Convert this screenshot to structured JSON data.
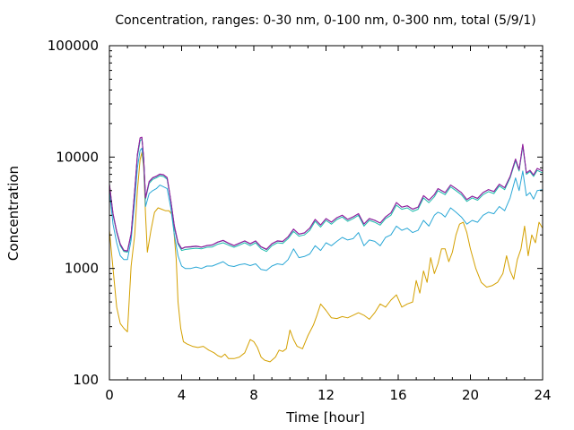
{
  "chart_data": {
    "type": "line",
    "title": "Concentration, ranges: 0-30 nm, 0-100 nm, 0-300 nm, total (5/9/1)",
    "xlabel": "Time [hour]",
    "ylabel": "Concentration",
    "xlim": [
      0,
      24
    ],
    "ylim": [
      100,
      100000
    ],
    "yscale": "log",
    "grid": false,
    "x_ticks": [
      0,
      4,
      8,
      12,
      16,
      20,
      24
    ],
    "x_tick_labels": [
      "0",
      "4",
      "8",
      "12",
      "16",
      "20",
      "24"
    ],
    "y_ticks": [
      100,
      1000,
      10000,
      100000
    ],
    "y_tick_labels": [
      "100",
      "1000",
      "10000",
      "100000"
    ],
    "series": [
      {
        "color": "#d4a000",
        "x": [
          0,
          0.2,
          0.4,
          0.6,
          0.8,
          1.0,
          1.2,
          1.4,
          1.55,
          1.7,
          1.8,
          1.9,
          2.0,
          2.1,
          2.3,
          2.5,
          2.7,
          2.9,
          3.1,
          3.3,
          3.5,
          3.7,
          3.8,
          3.95,
          4.1,
          4.3,
          4.6,
          4.9,
          5.2,
          5.5,
          5.8,
          6.0,
          6.2,
          6.4,
          6.6,
          6.9,
          7.2,
          7.5,
          7.8,
          8.0,
          8.2,
          8.4,
          8.6,
          8.9,
          9.2,
          9.4,
          9.6,
          9.8,
          10.0,
          10.2,
          10.4,
          10.7,
          11.0,
          11.3,
          11.5,
          11.7,
          12.0,
          12.3,
          12.6,
          12.9,
          13.2,
          13.5,
          13.8,
          14.1,
          14.4,
          14.7,
          15.0,
          15.3,
          15.6,
          15.9,
          16.2,
          16.5,
          16.8,
          17.0,
          17.2,
          17.4,
          17.6,
          17.8,
          18.0,
          18.2,
          18.4,
          18.6,
          18.8,
          19.0,
          19.2,
          19.4,
          19.6,
          19.8,
          20.0,
          20.3,
          20.6,
          20.9,
          21.2,
          21.5,
          21.8,
          22.0,
          22.2,
          22.4,
          22.6,
          22.8,
          23.0,
          23.2,
          23.4,
          23.6,
          23.8,
          24.0
        ],
        "y": [
          2200,
          1000,
          450,
          320,
          290,
          270,
          1050,
          2000,
          5000,
          9500,
          11000,
          8000,
          3000,
          1400,
          2200,
          3200,
          3500,
          3400,
          3300,
          3300,
          3000,
          1200,
          500,
          290,
          220,
          210,
          200,
          195,
          200,
          185,
          175,
          165,
          160,
          170,
          155,
          155,
          160,
          175,
          230,
          220,
          195,
          160,
          150,
          145,
          160,
          185,
          180,
          190,
          280,
          230,
          200,
          190,
          250,
          310,
          380,
          480,
          420,
          360,
          355,
          370,
          360,
          380,
          400,
          380,
          350,
          400,
          480,
          450,
          520,
          580,
          450,
          480,
          500,
          780,
          600,
          950,
          750,
          1250,
          900,
          1100,
          1500,
          1500,
          1150,
          1400,
          2000,
          2500,
          2600,
          2100,
          1500,
          1000,
          750,
          680,
          700,
          750,
          900,
          1300,
          950,
          800,
          1200,
          1500,
          2400,
          1300,
          2000,
          1700,
          2600,
          2300
        ],
        "values_note": ""
      },
      {
        "color": "#2aa7d6",
        "x": [
          0,
          0.2,
          0.4,
          0.6,
          0.8,
          1.0,
          1.2,
          1.4,
          1.55,
          1.7,
          1.8,
          1.9,
          2.0,
          2.2,
          2.4,
          2.6,
          2.8,
          3.0,
          3.2,
          3.4,
          3.6,
          3.8,
          4.0,
          4.2,
          4.5,
          4.8,
          5.1,
          5.4,
          5.7,
          6.0,
          6.3,
          6.6,
          6.9,
          7.2,
          7.5,
          7.8,
          8.1,
          8.4,
          8.7,
          9.0,
          9.3,
          9.6,
          9.9,
          10.2,
          10.5,
          10.8,
          11.1,
          11.4,
          11.7,
          12.0,
          12.3,
          12.6,
          12.9,
          13.2,
          13.5,
          13.8,
          14.1,
          14.4,
          14.7,
          15.0,
          15.3,
          15.6,
          15.9,
          16.2,
          16.5,
          16.8,
          17.1,
          17.4,
          17.7,
          18.0,
          18.2,
          18.4,
          18.6,
          18.9,
          19.2,
          19.5,
          19.8,
          20.1,
          20.4,
          20.7,
          21.0,
          21.3,
          21.6,
          21.9,
          22.2,
          22.5,
          22.7,
          22.9,
          23.1,
          23.3,
          23.5,
          23.7,
          24.0
        ],
        "y": [
          5000,
          2500,
          1700,
          1300,
          1200,
          1200,
          1800,
          4000,
          8000,
          11500,
          12000,
          8500,
          3600,
          4700,
          5000,
          5200,
          5600,
          5400,
          5200,
          3500,
          2000,
          1300,
          1050,
          1000,
          1000,
          1030,
          1000,
          1050,
          1050,
          1100,
          1150,
          1060,
          1040,
          1080,
          1100,
          1060,
          1100,
          980,
          960,
          1050,
          1100,
          1080,
          1200,
          1500,
          1250,
          1280,
          1350,
          1600,
          1450,
          1700,
          1600,
          1750,
          1900,
          1800,
          1850,
          2100,
          1600,
          1800,
          1750,
          1600,
          1900,
          2000,
          2400,
          2200,
          2300,
          2100,
          2200,
          2700,
          2400,
          3000,
          3200,
          3100,
          2900,
          3500,
          3200,
          2900,
          2500,
          2700,
          2600,
          3000,
          3200,
          3100,
          3600,
          3300,
          4300,
          6500,
          5000,
          7500,
          4500,
          4800,
          4200,
          5000,
          5100
        ]
      },
      {
        "color": "#1fbcad",
        "x": [
          0,
          0.2,
          0.4,
          0.6,
          0.8,
          1.0,
          1.2,
          1.4,
          1.55,
          1.7,
          1.8,
          1.9,
          2.0,
          2.2,
          2.4,
          2.6,
          2.8,
          3.0,
          3.2,
          3.4,
          3.6,
          3.8,
          4.0,
          4.2,
          4.5,
          4.8,
          5.1,
          5.4,
          5.7,
          6.0,
          6.3,
          6.6,
          6.9,
          7.2,
          7.5,
          7.8,
          8.1,
          8.4,
          8.7,
          9.0,
          9.3,
          9.6,
          9.9,
          10.2,
          10.5,
          10.8,
          11.1,
          11.4,
          11.7,
          12.0,
          12.3,
          12.6,
          12.9,
          13.2,
          13.5,
          13.8,
          14.1,
          14.4,
          14.7,
          15.0,
          15.3,
          15.6,
          15.9,
          16.2,
          16.5,
          16.8,
          17.1,
          17.4,
          17.7,
          18.0,
          18.2,
          18.4,
          18.6,
          18.9,
          19.2,
          19.5,
          19.8,
          20.1,
          20.4,
          20.7,
          21.0,
          21.3,
          21.6,
          21.9,
          22.2,
          22.5,
          22.7,
          22.9,
          23.1,
          23.3,
          23.5,
          23.7,
          24.0
        ],
        "y": [
          5500,
          3000,
          2100,
          1600,
          1420,
          1400,
          2000,
          4800,
          10000,
          14000,
          14500,
          9500,
          4200,
          5800,
          6300,
          6500,
          6800,
          6700,
          6300,
          4000,
          2300,
          1650,
          1450,
          1480,
          1500,
          1520,
          1500,
          1550,
          1560,
          1650,
          1700,
          1620,
          1550,
          1620,
          1700,
          1600,
          1700,
          1500,
          1420,
          1600,
          1700,
          1680,
          1850,
          2150,
          1950,
          2000,
          2200,
          2650,
          2350,
          2700,
          2500,
          2750,
          2900,
          2650,
          2800,
          3000,
          2400,
          2700,
          2600,
          2450,
          2800,
          3000,
          3700,
          3400,
          3500,
          3250,
          3400,
          4300,
          3900,
          4400,
          5000,
          4800,
          4600,
          5400,
          5000,
          4600,
          4000,
          4300,
          4100,
          4600,
          4900,
          4700,
          5500,
          5100,
          6500,
          9300,
          7500,
          12500,
          7000,
          7400,
          6700,
          7600,
          7200
        ]
      },
      {
        "color": "#2f3a8c",
        "x": [
          0,
          0.2,
          0.4,
          0.6,
          0.8,
          1.0,
          1.2,
          1.4,
          1.55,
          1.7,
          1.8,
          1.9,
          2.0,
          2.2,
          2.4,
          2.6,
          2.8,
          3.0,
          3.2,
          3.4,
          3.6,
          3.8,
          4.0,
          4.2,
          4.5,
          4.8,
          5.1,
          5.4,
          5.7,
          6.0,
          6.3,
          6.6,
          6.9,
          7.2,
          7.5,
          7.8,
          8.1,
          8.4,
          8.7,
          9.0,
          9.3,
          9.6,
          9.9,
          10.2,
          10.5,
          10.8,
          11.1,
          11.4,
          11.7,
          12.0,
          12.3,
          12.6,
          12.9,
          13.2,
          13.5,
          13.8,
          14.1,
          14.4,
          14.7,
          15.0,
          15.3,
          15.6,
          15.9,
          16.2,
          16.5,
          16.8,
          17.1,
          17.4,
          17.7,
          18.0,
          18.2,
          18.4,
          18.6,
          18.9,
          19.2,
          19.5,
          19.8,
          20.1,
          20.4,
          20.7,
          21.0,
          21.3,
          21.6,
          21.9,
          22.2,
          22.5,
          22.7,
          22.9,
          23.1,
          23.3,
          23.5,
          23.7,
          24.0
        ],
        "y": [
          5700,
          3100,
          2150,
          1650,
          1450,
          1430,
          2050,
          5000,
          10500,
          14800,
          15000,
          9800,
          4300,
          6000,
          6500,
          6700,
          7000,
          6900,
          6500,
          4100,
          2400,
          1700,
          1500,
          1550,
          1560,
          1580,
          1550,
          1600,
          1620,
          1720,
          1780,
          1680,
          1600,
          1680,
          1760,
          1660,
          1760,
          1560,
          1480,
          1660,
          1760,
          1740,
          1920,
          2250,
          2030,
          2080,
          2300,
          2750,
          2450,
          2800,
          2600,
          2850,
          3000,
          2750,
          2900,
          3100,
          2500,
          2800,
          2700,
          2550,
          2900,
          3150,
          3900,
          3550,
          3650,
          3400,
          3550,
          4500,
          4100,
          4600,
          5200,
          5000,
          4800,
          5600,
          5200,
          4800,
          4150,
          4450,
          4250,
          4800,
          5100,
          4900,
          5700,
          5300,
          6700,
          9600,
          7700,
          13000,
          7200,
          7600,
          6900,
          7900,
          7500
        ]
      },
      {
        "color": "#9c1fa0",
        "x": [
          0,
          0.2,
          0.4,
          0.6,
          0.8,
          1.0,
          1.2,
          1.4,
          1.55,
          1.7,
          1.8,
          1.9,
          2.0,
          2.2,
          2.4,
          2.6,
          2.8,
          3.0,
          3.2,
          3.4,
          3.6,
          3.8,
          4.0,
          4.2,
          4.5,
          4.8,
          5.1,
          5.4,
          5.7,
          6.0,
          6.3,
          6.6,
          6.9,
          7.2,
          7.5,
          7.8,
          8.1,
          8.4,
          8.7,
          9.0,
          9.3,
          9.6,
          9.9,
          10.2,
          10.5,
          10.8,
          11.1,
          11.4,
          11.7,
          12.0,
          12.3,
          12.6,
          12.9,
          13.2,
          13.5,
          13.8,
          14.1,
          14.4,
          14.7,
          15.0,
          15.3,
          15.6,
          15.9,
          16.2,
          16.5,
          16.8,
          17.1,
          17.4,
          17.7,
          18.0,
          18.2,
          18.4,
          18.6,
          18.9,
          19.2,
          19.5,
          19.8,
          20.1,
          20.4,
          20.7,
          21.0,
          21.3,
          21.6,
          21.9,
          22.2,
          22.5,
          22.7,
          22.9,
          23.1,
          23.3,
          23.5,
          23.7,
          24.0
        ],
        "y": [
          5750,
          3120,
          2160,
          1660,
          1460,
          1440,
          2060,
          5050,
          10600,
          14900,
          15100,
          9850,
          4320,
          6050,
          6550,
          6750,
          7050,
          6950,
          6550,
          4120,
          2420,
          1710,
          1510,
          1560,
          1570,
          1590,
          1560,
          1610,
          1630,
          1730,
          1790,
          1690,
          1610,
          1690,
          1770,
          1670,
          1770,
          1570,
          1490,
          1670,
          1770,
          1750,
          1930,
          2260,
          2040,
          2090,
          2310,
          2760,
          2460,
          2810,
          2610,
          2860,
          3010,
          2760,
          2910,
          3110,
          2510,
          2810,
          2710,
          2560,
          2910,
          3160,
          3910,
          3560,
          3660,
          3410,
          3560,
          4510,
          4110,
          4610,
          5210,
          5010,
          4810,
          5610,
          5210,
          4810,
          4160,
          4460,
          4260,
          4810,
          5110,
          4910,
          5710,
          5310,
          6710,
          9610,
          7710,
          13010,
          7210,
          7610,
          6910,
          7910,
          7510
        ]
      }
    ]
  }
}
